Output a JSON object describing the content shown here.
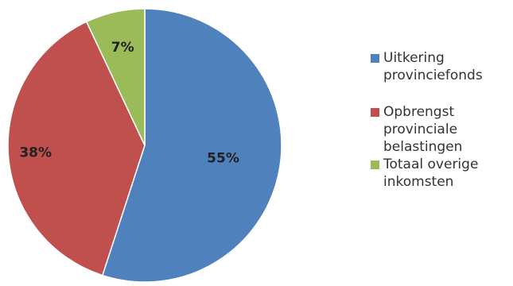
{
  "chart_data": {
    "type": "pie",
    "title": "",
    "start_angle_deg": 0,
    "direction": "clockwise",
    "legend_placement": "right",
    "slices": [
      {
        "label": "Uitkering provinciefonds",
        "value": 55,
        "display": "55%",
        "color": "#4F81BD"
      },
      {
        "label": "Opbrengst provinciale belastingen",
        "value": 38,
        "display": "38%",
        "color": "#C0504D"
      },
      {
        "label": "Totaal overige inkomsten",
        "value": 7,
        "display": "7%",
        "color": "#9BBB59"
      }
    ],
    "legend": [
      {
        "label": "Uitkering provinciefonds",
        "color": "#4F81BD"
      },
      {
        "label": "Opbrengst provinciale belastingen",
        "color": "#C0504D"
      },
      {
        "label": "Totaal overige inkomsten",
        "color": "#9BBB59"
      }
    ]
  }
}
